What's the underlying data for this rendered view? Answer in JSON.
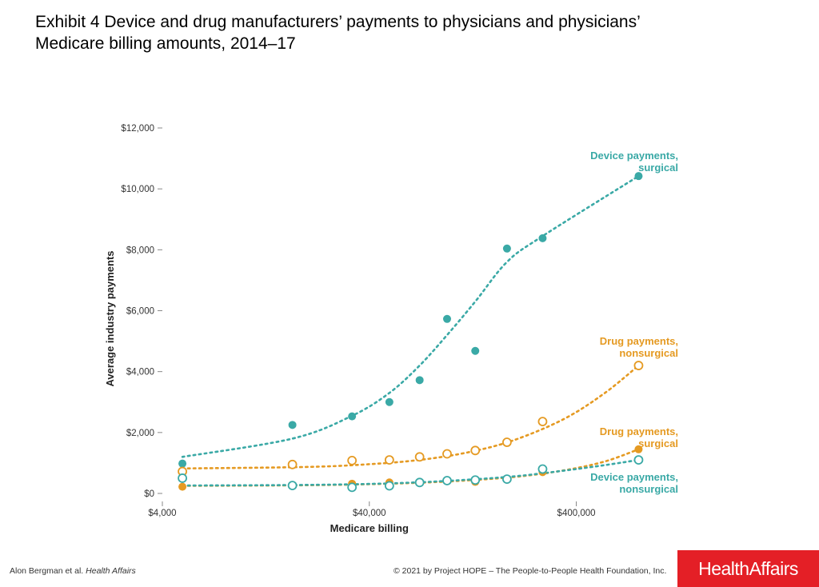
{
  "title_lines": [
    "Exhibit 4 Device and drug manufacturers’ payments to physicians and physicians’",
    "Medicare billing amounts, 2014–17"
  ],
  "footer": {
    "author": "Alon Bergman et al.",
    "journal": "Health Affairs",
    "copyright": "© 2021 by Project HOPE – The People-to-People Health Foundation, Inc.",
    "logo_text": "HealthAffairs"
  },
  "colors": {
    "teal": "#3aa9a6",
    "orange": "#e59a22",
    "axis": "#888888"
  },
  "chart_data": {
    "type": "scatter",
    "xscale": "log",
    "xlabel": "Medicare billing",
    "ylabel": "Average industry payments",
    "xlim": [
      4000,
      1300000
    ],
    "ylim": [
      0,
      12000
    ],
    "xticks": [
      4000,
      40000,
      400000
    ],
    "xtick_labels": [
      "$4,000",
      "$40,000",
      "$400,000"
    ],
    "yticks": [
      0,
      2000,
      4000,
      6000,
      8000,
      10000,
      12000
    ],
    "ytick_labels": [
      "$0",
      "$2,000",
      "$4,000",
      "$6,000",
      "$8,000",
      "$10,000",
      "$12,000"
    ],
    "grid": false,
    "series": [
      {
        "name": "Device payments, surgical",
        "label_lines": [
          "Device payments,",
          "surgical"
        ],
        "color": "#3aa9a6",
        "marker": "filled",
        "x": [
          5000,
          17000,
          33000,
          50000,
          70000,
          95000,
          130000,
          185000,
          275000,
          800000
        ],
        "y": [
          980,
          2250,
          2530,
          3000,
          3720,
          5730,
          4680,
          8040,
          8380,
          10420
        ],
        "trend_y": [
          1200,
          1800,
          2550,
          3300,
          4200,
          5200,
          6300,
          7600,
          8450,
          10420
        ],
        "trend_x": [
          5000,
          17000,
          33000,
          50000,
          70000,
          95000,
          130000,
          185000,
          275000,
          800000
        ]
      },
      {
        "name": "Drug payments, nonsurgical",
        "label_lines": [
          "Drug payments,",
          "nonsurgical"
        ],
        "color": "#e59a22",
        "marker": "open",
        "x": [
          5000,
          17000,
          33000,
          50000,
          70000,
          95000,
          130000,
          185000,
          275000,
          800000
        ],
        "y": [
          720,
          950,
          1080,
          1100,
          1200,
          1300,
          1410,
          1680,
          2360,
          4200
        ],
        "trend_x": [
          5000,
          20000,
          40000,
          70000,
          120000,
          200000,
          350000,
          550000,
          800000
        ],
        "trend_y": [
          820,
          870,
          960,
          1100,
          1350,
          1750,
          2450,
          3300,
          4200
        ]
      },
      {
        "name": "Drug payments, surgical",
        "label_lines": [
          "Drug payments,",
          "surgical"
        ],
        "color": "#e59a22",
        "marker": "filled",
        "x": [
          5000,
          17000,
          33000,
          50000,
          70000,
          95000,
          130000,
          185000,
          275000,
          800000
        ],
        "y": [
          220,
          280,
          320,
          360,
          360,
          420,
          380,
          460,
          700,
          1450
        ],
        "trend_x": [
          5000,
          20000,
          50000,
          100000,
          200000,
          350000,
          550000,
          800000
        ],
        "trend_y": [
          250,
          270,
          320,
          400,
          540,
          760,
          1050,
          1450
        ]
      },
      {
        "name": "Device payments, nonsurgical",
        "label_lines": [
          "Device payments,",
          "nonsurgical"
        ],
        "color": "#3aa9a6",
        "marker": "open",
        "x": [
          5000,
          17000,
          33000,
          50000,
          70000,
          95000,
          130000,
          185000,
          275000,
          800000
        ],
        "y": [
          500,
          260,
          200,
          250,
          360,
          420,
          440,
          470,
          800,
          1100
        ],
        "trend_x": [
          5000,
          20000,
          50000,
          100000,
          200000,
          350000,
          550000,
          800000
        ],
        "trend_y": [
          260,
          280,
          330,
          420,
          560,
          750,
          930,
          1100
        ]
      }
    ]
  }
}
